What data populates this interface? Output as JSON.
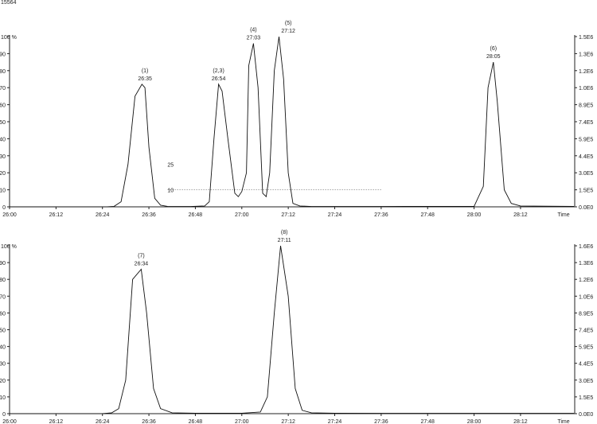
{
  "header": {
    "id_text": "15564"
  },
  "chart_data": [
    {
      "type": "line",
      "x_ticks": [
        "26:00",
        "26:12",
        "26:24",
        "26:36",
        "26:48",
        "27:00",
        "27:12",
        "27:24",
        "27:36",
        "27:48",
        "28:00",
        "28:12"
      ],
      "xlabel": "Time",
      "ylabel_top": "100 %",
      "y_ticks": [
        "0",
        "10",
        "20",
        "30",
        "40",
        "50",
        "60",
        "70",
        "80",
        "90"
      ],
      "y_right_ticks": [
        "0.0E0",
        "1.5E5",
        "3.0E5",
        "4.4E5",
        "5.9E5",
        "7.4E5",
        "8.9E5",
        "1.0E6",
        "1.2E6",
        "1.3E6",
        "1.5E6"
      ],
      "ylim": [
        0,
        100
      ],
      "xlim_min": [
        26.0,
        28.4333
      ],
      "series": [
        {
          "x": [
            26.0,
            26.42,
            26.45,
            26.48,
            26.51,
            26.54,
            26.57,
            26.583,
            26.6,
            26.625,
            26.65,
            26.68,
            26.72,
            26.78,
            26.84,
            26.86,
            26.88,
            26.9,
            26.915,
            26.94,
            26.97,
            26.985,
            27.0,
            27.02,
            27.03,
            27.05,
            27.07,
            27.09,
            27.105,
            27.12,
            27.14,
            27.16,
            27.18,
            27.2,
            27.22,
            27.25,
            27.3,
            27.4,
            27.6,
            27.8,
            28.0,
            28.04,
            28.06,
            28.083,
            28.1,
            28.13,
            28.16,
            28.2,
            28.43
          ],
          "y": [
            0,
            0,
            0.3,
            3,
            25,
            65,
            72,
            70,
            35,
            5,
            1,
            0.3,
            0.2,
            0.2,
            0.5,
            3,
            40,
            72,
            68,
            40,
            8,
            6,
            9,
            20,
            83,
            96,
            70,
            8,
            6,
            20,
            80,
            100,
            75,
            20,
            2,
            0.5,
            0.2,
            0.2,
            0.2,
            0.3,
            0.3,
            12,
            70,
            85,
            62,
            10,
            2,
            0.5,
            0.3
          ]
        }
      ],
      "annotations": [
        {
          "label": "(1)",
          "time": "26:35",
          "x": 26.583,
          "y": 72
        },
        {
          "label": "(2,3)",
          "time": "26:54",
          "x": 26.9,
          "y": 72
        },
        {
          "label": "(4)",
          "time": "27:03",
          "x": 27.05,
          "y": 96
        },
        {
          "label": "(5)",
          "time": "27:12",
          "x": 27.2,
          "y": 100
        },
        {
          "label": "(6)",
          "time": "28:05",
          "x": 28.083,
          "y": 85
        }
      ],
      "extra_labels": [
        {
          "text": "25",
          "x": 26.68,
          "y": 25
        },
        {
          "text": "10",
          "x": 26.68,
          "y": 10
        }
      ],
      "hline": {
        "y": 10,
        "x_from": 26.68,
        "x_to": 27.6
      }
    },
    {
      "type": "line",
      "x_ticks": [
        "26:00",
        "26:12",
        "26:24",
        "26:36",
        "26:48",
        "27:00",
        "27:12",
        "27:24",
        "27:36",
        "27:48",
        "28:00",
        "28:12"
      ],
      "xlabel": "Time",
      "ylabel_top": "100 %",
      "y_ticks": [
        "0",
        "10",
        "20",
        "30",
        "40",
        "50",
        "60",
        "70",
        "80",
        "90"
      ],
      "y_right_ticks": [
        "0.0E0",
        "1.5E5",
        "3.0E5",
        "4.4E5",
        "5.9E5",
        "7.4E5",
        "8.9E5",
        "1.0E6",
        "1.2E6",
        "1.3E6",
        "1.6E6"
      ],
      "ylim": [
        0,
        100
      ],
      "xlim_min": [
        26.0,
        28.4333
      ],
      "series": [
        {
          "x": [
            26.0,
            26.4,
            26.44,
            26.47,
            26.5,
            26.53,
            26.567,
            26.59,
            26.62,
            26.65,
            26.7,
            26.8,
            27.0,
            27.08,
            27.11,
            27.14,
            27.167,
            27.2,
            27.23,
            27.26,
            27.3,
            27.4,
            27.6,
            28.43
          ],
          "y": [
            0,
            0,
            0.5,
            3,
            20,
            80,
            86,
            60,
            15,
            3,
            0.5,
            0.3,
            0.3,
            1,
            10,
            60,
            100,
            70,
            15,
            2,
            0.5,
            0.3,
            0.2,
            0.2
          ]
        }
      ],
      "annotations": [
        {
          "label": "(7)",
          "time": "26:34",
          "x": 26.567,
          "y": 86
        },
        {
          "label": "(8)",
          "time": "27:11",
          "x": 27.183,
          "y": 100
        }
      ]
    }
  ]
}
